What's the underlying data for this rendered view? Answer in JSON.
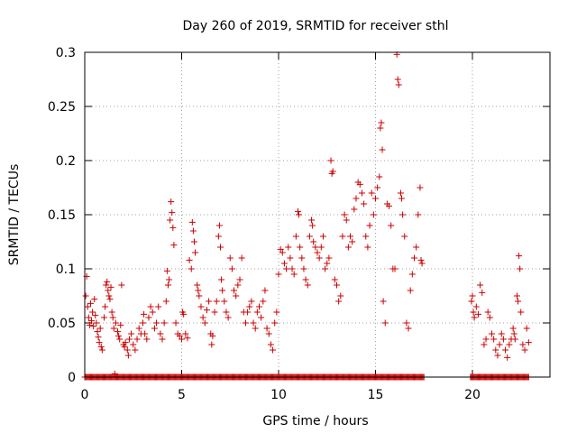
{
  "chart_data": {
    "type": "scatter",
    "title": "Day 260 of 2019, SRMTID for receiver sthl",
    "xlabel": "GPS time / hours",
    "ylabel": "SRMTID / TECUs",
    "xlim": [
      0,
      24
    ],
    "ylim": [
      0,
      0.3
    ],
    "x_ticks": [
      0,
      5,
      10,
      15,
      20
    ],
    "x_tick_labels": [
      "0",
      "5",
      "10",
      "15",
      "20"
    ],
    "y_ticks": [
      0,
      0.05,
      0.1,
      0.15,
      0.2,
      0.25,
      0.3
    ],
    "y_tick_labels": [
      "0",
      "0.05",
      "0.1",
      "0.15",
      "0.2",
      "0.25",
      "0.3"
    ],
    "grid": true,
    "marker": "+",
    "marker_color": "#cc0000",
    "zero_data_ranges_hours": [
      [
        0.0,
        17.5
      ],
      [
        19.9,
        22.9
      ]
    ],
    "series": [
      {
        "name": "sthl",
        "points": [
          [
            0.05,
            0.075
          ],
          [
            0.1,
            0.093
          ],
          [
            0.15,
            0.065
          ],
          [
            0.2,
            0.055
          ],
          [
            0.25,
            0.048
          ],
          [
            0.3,
            0.068
          ],
          [
            0.35,
            0.052
          ],
          [
            0.4,
            0.06
          ],
          [
            0.45,
            0.047
          ],
          [
            0.5,
            0.072
          ],
          [
            0.55,
            0.057
          ],
          [
            0.6,
            0.05
          ],
          [
            0.65,
            0.042
          ],
          [
            0.7,
            0.037
          ],
          [
            0.75,
            0.032
          ],
          [
            0.8,
            0.045
          ],
          [
            0.85,
            0.028
          ],
          [
            0.9,
            0.025
          ],
          [
            1.0,
            0.055
          ],
          [
            1.05,
            0.065
          ],
          [
            1.1,
            0.085
          ],
          [
            1.15,
            0.088
          ],
          [
            1.2,
            0.08
          ],
          [
            1.25,
            0.075
          ],
          [
            1.3,
            0.072
          ],
          [
            1.35,
            0.083
          ],
          [
            1.4,
            0.06
          ],
          [
            1.45,
            0.055
          ],
          [
            1.5,
            0.045
          ],
          [
            1.55,
            0.003
          ],
          [
            1.6,
            0.05
          ],
          [
            1.7,
            0.042
          ],
          [
            1.75,
            0.038
          ],
          [
            1.8,
            0.035
          ],
          [
            1.85,
            0.048
          ],
          [
            1.9,
            0.085
          ],
          [
            2.0,
            0.03
          ],
          [
            2.05,
            0.028
          ],
          [
            2.1,
            0.032
          ],
          [
            2.2,
            0.025
          ],
          [
            2.25,
            0.02
          ],
          [
            2.3,
            0.035
          ],
          [
            2.4,
            0.04
          ],
          [
            2.5,
            0.03
          ],
          [
            2.6,
            0.025
          ],
          [
            2.7,
            0.035
          ],
          [
            2.8,
            0.045
          ],
          [
            2.9,
            0.04
          ],
          [
            3.0,
            0.05
          ],
          [
            3.05,
            0.058
          ],
          [
            3.1,
            0.04
          ],
          [
            3.2,
            0.035
          ],
          [
            3.3,
            0.055
          ],
          [
            3.4,
            0.065
          ],
          [
            3.5,
            0.06
          ],
          [
            3.6,
            0.045
          ],
          [
            3.7,
            0.05
          ],
          [
            3.8,
            0.065
          ],
          [
            3.9,
            0.04
          ],
          [
            4.0,
            0.035
          ],
          [
            4.1,
            0.05
          ],
          [
            4.2,
            0.07
          ],
          [
            4.25,
            0.098
          ],
          [
            4.3,
            0.085
          ],
          [
            4.35,
            0.09
          ],
          [
            4.4,
            0.145
          ],
          [
            4.45,
            0.162
          ],
          [
            4.5,
            0.152
          ],
          [
            4.55,
            0.138
          ],
          [
            4.6,
            0.122
          ],
          [
            4.7,
            0.05
          ],
          [
            4.8,
            0.04
          ],
          [
            4.9,
            0.038
          ],
          [
            5.0,
            0.035
          ],
          [
            5.05,
            0.06
          ],
          [
            5.1,
            0.058
          ],
          [
            5.2,
            0.04
          ],
          [
            5.3,
            0.036
          ],
          [
            5.4,
            0.108
          ],
          [
            5.5,
            0.1
          ],
          [
            5.55,
            0.143
          ],
          [
            5.6,
            0.135
          ],
          [
            5.65,
            0.125
          ],
          [
            5.7,
            0.115
          ],
          [
            5.8,
            0.085
          ],
          [
            5.85,
            0.08
          ],
          [
            5.9,
            0.075
          ],
          [
            6.0,
            0.065
          ],
          [
            6.1,
            0.055
          ],
          [
            6.2,
            0.05
          ],
          [
            6.3,
            0.062
          ],
          [
            6.4,
            0.07
          ],
          [
            6.5,
            0.04
          ],
          [
            6.55,
            0.03
          ],
          [
            6.6,
            0.038
          ],
          [
            6.7,
            0.06
          ],
          [
            6.8,
            0.07
          ],
          [
            6.9,
            0.13
          ],
          [
            6.95,
            0.14
          ],
          [
            7.0,
            0.12
          ],
          [
            7.05,
            0.09
          ],
          [
            7.1,
            0.08
          ],
          [
            7.2,
            0.07
          ],
          [
            7.3,
            0.06
          ],
          [
            7.4,
            0.055
          ],
          [
            7.5,
            0.11
          ],
          [
            7.6,
            0.1
          ],
          [
            7.7,
            0.08
          ],
          [
            7.8,
            0.075
          ],
          [
            7.9,
            0.085
          ],
          [
            8.0,
            0.09
          ],
          [
            8.1,
            0.11
          ],
          [
            8.2,
            0.06
          ],
          [
            8.3,
            0.05
          ],
          [
            8.4,
            0.06
          ],
          [
            8.5,
            0.065
          ],
          [
            8.6,
            0.07
          ],
          [
            8.7,
            0.05
          ],
          [
            8.8,
            0.045
          ],
          [
            8.9,
            0.06
          ],
          [
            9.0,
            0.065
          ],
          [
            9.1,
            0.055
          ],
          [
            9.2,
            0.07
          ],
          [
            9.3,
            0.08
          ],
          [
            9.4,
            0.045
          ],
          [
            9.5,
            0.04
          ],
          [
            9.6,
            0.03
          ],
          [
            9.7,
            0.025
          ],
          [
            9.8,
            0.05
          ],
          [
            9.9,
            0.06
          ],
          [
            10.0,
            0.095
          ],
          [
            10.1,
            0.118
          ],
          [
            10.2,
            0.115
          ],
          [
            10.3,
            0.105
          ],
          [
            10.4,
            0.1
          ],
          [
            10.5,
            0.12
          ],
          [
            10.6,
            0.11
          ],
          [
            10.7,
            0.1
          ],
          [
            10.8,
            0.095
          ],
          [
            10.9,
            0.13
          ],
          [
            11.0,
            0.153
          ],
          [
            11.05,
            0.15
          ],
          [
            11.1,
            0.12
          ],
          [
            11.2,
            0.11
          ],
          [
            11.3,
            0.1
          ],
          [
            11.4,
            0.09
          ],
          [
            11.5,
            0.085
          ],
          [
            11.6,
            0.13
          ],
          [
            11.7,
            0.145
          ],
          [
            11.75,
            0.14
          ],
          [
            11.8,
            0.125
          ],
          [
            11.9,
            0.12
          ],
          [
            12.0,
            0.115
          ],
          [
            12.1,
            0.11
          ],
          [
            12.2,
            0.12
          ],
          [
            12.3,
            0.13
          ],
          [
            12.4,
            0.1
          ],
          [
            12.5,
            0.105
          ],
          [
            12.6,
            0.11
          ],
          [
            12.7,
            0.2
          ],
          [
            12.75,
            0.188
          ],
          [
            12.8,
            0.19
          ],
          [
            12.9,
            0.09
          ],
          [
            13.0,
            0.085
          ],
          [
            13.1,
            0.07
          ],
          [
            13.2,
            0.075
          ],
          [
            13.3,
            0.13
          ],
          [
            13.4,
            0.15
          ],
          [
            13.5,
            0.145
          ],
          [
            13.6,
            0.12
          ],
          [
            13.7,
            0.13
          ],
          [
            13.8,
            0.125
          ],
          [
            13.9,
            0.155
          ],
          [
            14.0,
            0.165
          ],
          [
            14.1,
            0.18
          ],
          [
            14.2,
            0.178
          ],
          [
            14.3,
            0.17
          ],
          [
            14.4,
            0.16
          ],
          [
            14.5,
            0.13
          ],
          [
            14.6,
            0.12
          ],
          [
            14.7,
            0.14
          ],
          [
            14.8,
            0.17
          ],
          [
            14.9,
            0.15
          ],
          [
            15.0,
            0.165
          ],
          [
            15.1,
            0.175
          ],
          [
            15.2,
            0.185
          ],
          [
            15.25,
            0.23
          ],
          [
            15.3,
            0.235
          ],
          [
            15.35,
            0.21
          ],
          [
            15.4,
            0.07
          ],
          [
            15.5,
            0.05
          ],
          [
            15.6,
            0.16
          ],
          [
            15.7,
            0.158
          ],
          [
            15.8,
            0.14
          ],
          [
            15.9,
            0.1
          ],
          [
            16.0,
            0.1
          ],
          [
            16.1,
            0.298
          ],
          [
            16.15,
            0.275
          ],
          [
            16.2,
            0.27
          ],
          [
            16.3,
            0.17
          ],
          [
            16.35,
            0.165
          ],
          [
            16.4,
            0.15
          ],
          [
            16.5,
            0.13
          ],
          [
            16.6,
            0.05
          ],
          [
            16.7,
            0.045
          ],
          [
            16.8,
            0.08
          ],
          [
            16.9,
            0.095
          ],
          [
            17.0,
            0.11
          ],
          [
            17.1,
            0.12
          ],
          [
            17.2,
            0.15
          ],
          [
            17.3,
            0.175
          ],
          [
            17.35,
            0.108
          ],
          [
            17.4,
            0.105
          ],
          [
            19.95,
            0.07
          ],
          [
            20.0,
            0.075
          ],
          [
            20.05,
            0.06
          ],
          [
            20.1,
            0.055
          ],
          [
            20.2,
            0.065
          ],
          [
            20.3,
            0.058
          ],
          [
            20.4,
            0.085
          ],
          [
            20.5,
            0.078
          ],
          [
            20.6,
            0.03
          ],
          [
            20.7,
            0.035
          ],
          [
            20.8,
            0.06
          ],
          [
            20.9,
            0.055
          ],
          [
            21.0,
            0.04
          ],
          [
            21.1,
            0.035
          ],
          [
            21.2,
            0.025
          ],
          [
            21.3,
            0.02
          ],
          [
            21.4,
            0.03
          ],
          [
            21.5,
            0.04
          ],
          [
            21.6,
            0.035
          ],
          [
            21.7,
            0.025
          ],
          [
            21.8,
            0.018
          ],
          [
            21.9,
            0.03
          ],
          [
            22.0,
            0.035
          ],
          [
            22.1,
            0.045
          ],
          [
            22.15,
            0.04
          ],
          [
            22.2,
            0.035
          ],
          [
            22.3,
            0.075
          ],
          [
            22.35,
            0.07
          ],
          [
            22.4,
            0.112
          ],
          [
            22.45,
            0.1
          ],
          [
            22.5,
            0.06
          ],
          [
            22.6,
            0.03
          ],
          [
            22.7,
            0.025
          ],
          [
            22.8,
            0.045
          ],
          [
            22.9,
            0.032
          ]
        ]
      }
    ]
  }
}
